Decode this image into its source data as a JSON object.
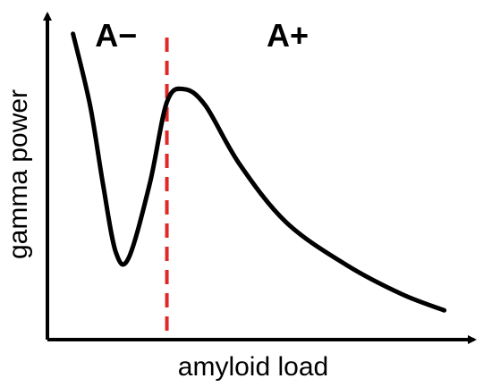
{
  "chart_data": {
    "type": "line",
    "title": "",
    "xlabel": "amyloid load",
    "ylabel": "gamma power",
    "xlim": [
      0,
      1
    ],
    "ylim": [
      0,
      1
    ],
    "grid": false,
    "ticks": false,
    "series": [
      {
        "values": [
          [
            0.06,
            0.94
          ],
          [
            0.1,
            0.72
          ],
          [
            0.13,
            0.48
          ],
          [
            0.16,
            0.27
          ],
          [
            0.19,
            0.25
          ],
          [
            0.24,
            0.48
          ],
          [
            0.28,
            0.73
          ],
          [
            0.32,
            0.77
          ],
          [
            0.37,
            0.72
          ],
          [
            0.45,
            0.54
          ],
          [
            0.56,
            0.36
          ],
          [
            0.7,
            0.23
          ],
          [
            0.83,
            0.14
          ],
          [
            0.93,
            0.09
          ]
        ],
        "color": "#000000"
      }
    ],
    "threshold": {
      "x": 0.28,
      "color": "#e32626",
      "style": "dashed"
    },
    "regions": [
      {
        "label": "A−"
      },
      {
        "label": "A+"
      }
    ]
  }
}
